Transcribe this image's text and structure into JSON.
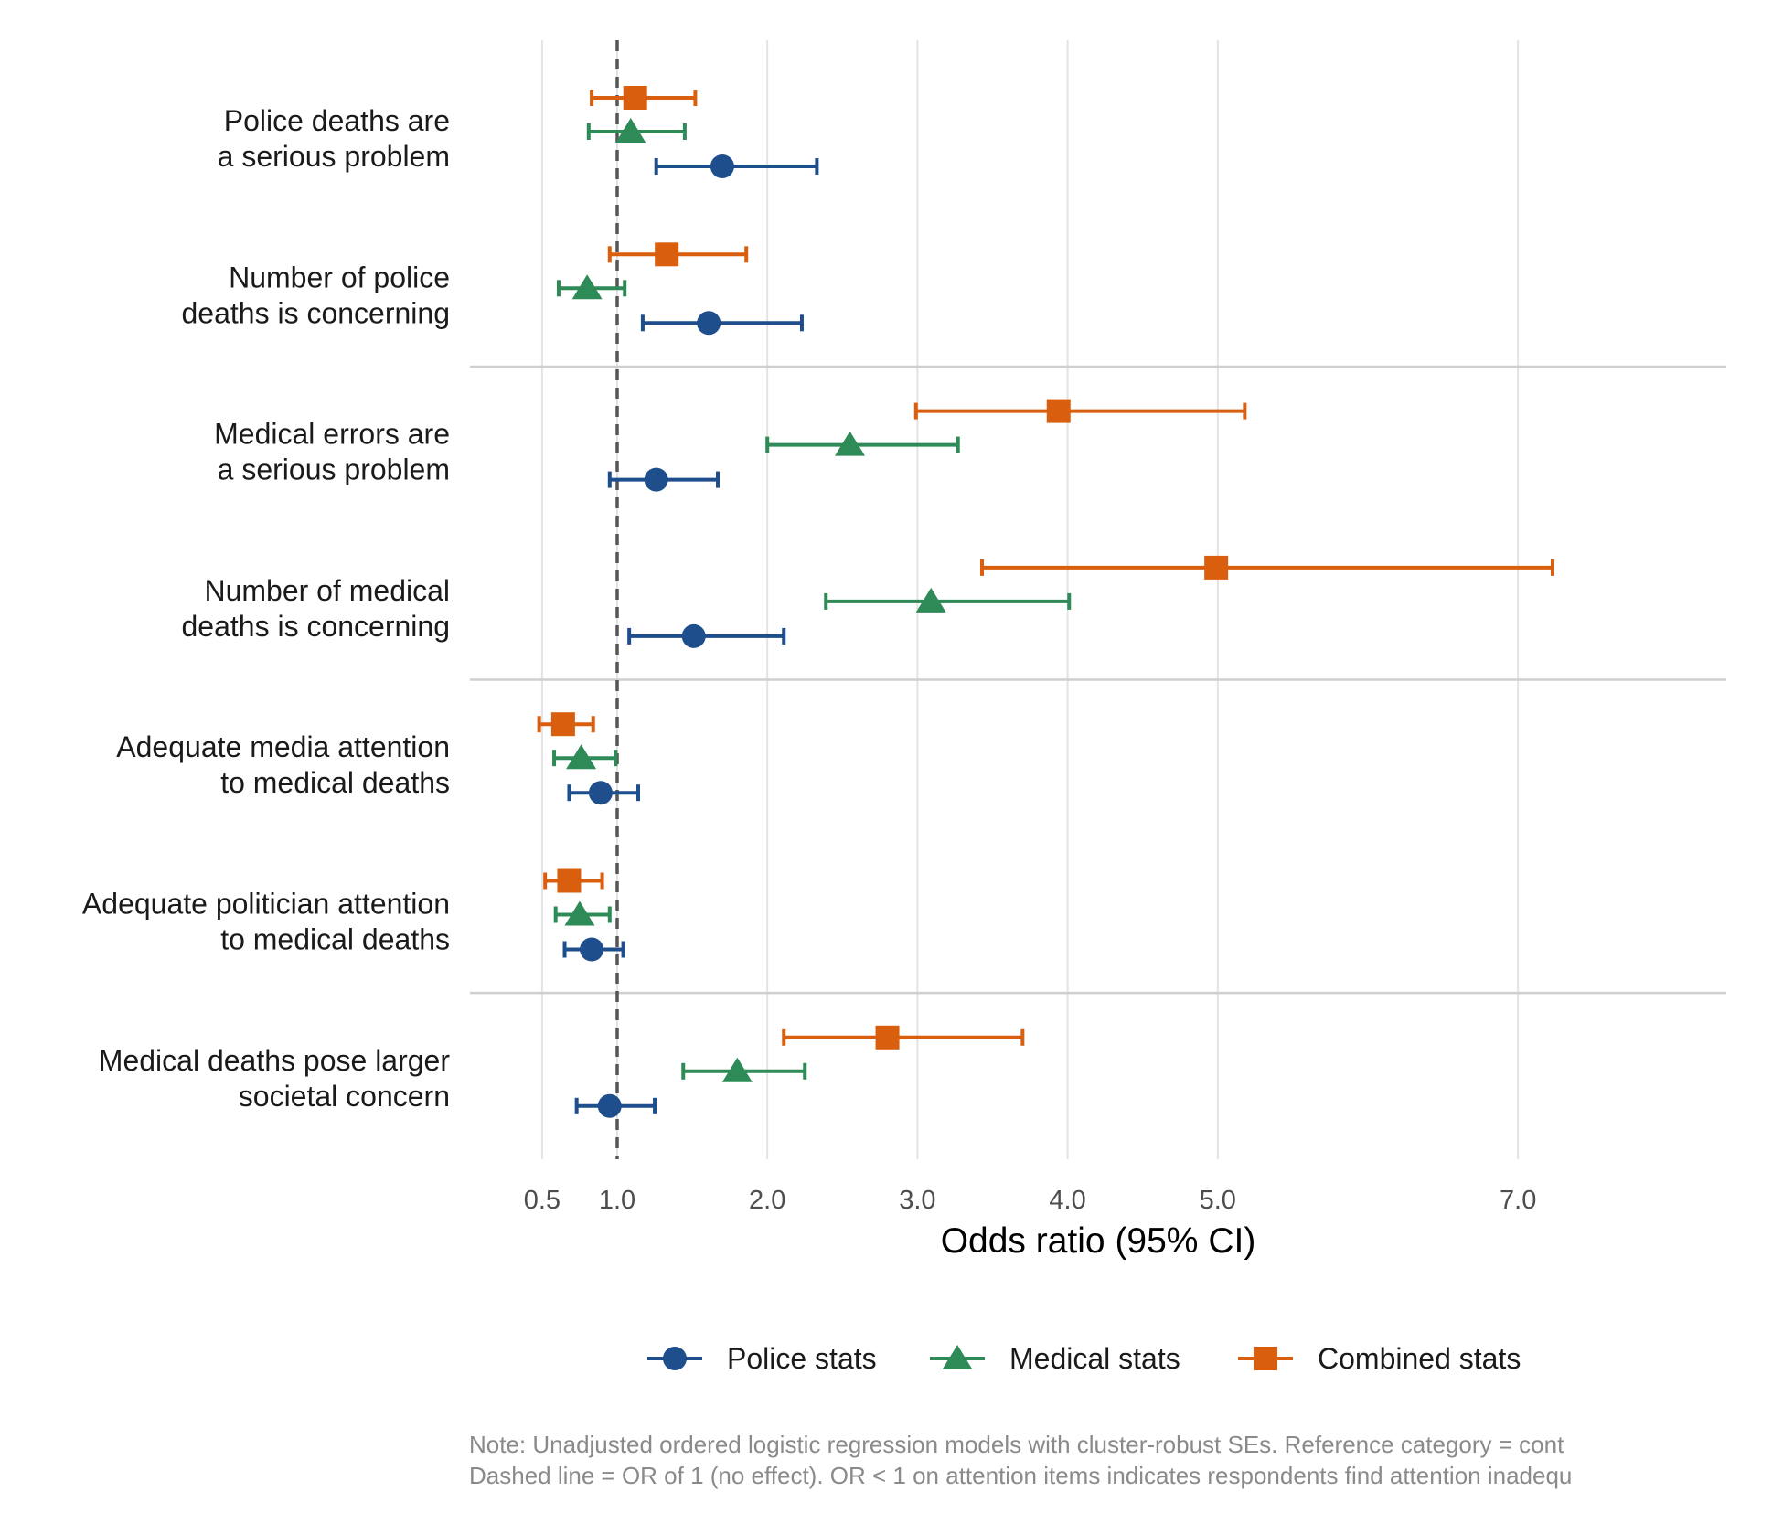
{
  "chart_data": {
    "type": "forest",
    "xlabel": "Odds ratio (95% CI)",
    "xlim": [
      0.4,
      8.4
    ],
    "x_ticks": [
      0.5,
      1.0,
      2.0,
      3.0,
      4.0,
      5.0,
      7.0
    ],
    "x_tick_labels": [
      "0.5",
      "1.0",
      "2.0",
      "3.0",
      "4.0",
      "5.0",
      "7.0"
    ],
    "reference_line": 1.0,
    "grid": true,
    "legend_position": "bottom",
    "categories": [
      [
        "Police deaths are",
        "a serious problem"
      ],
      [
        "Number of police",
        "deaths is concerning"
      ],
      [
        "Medical errors are",
        "a serious problem"
      ],
      [
        "Number of medical",
        "deaths is concerning"
      ],
      [
        "Adequate media attention",
        "to medical deaths"
      ],
      [
        "Adequate politician attention",
        "to medical deaths"
      ],
      [
        "Medical deaths pose larger",
        "societal concern"
      ]
    ],
    "group_dividers_after": [
      2,
      4,
      6
    ],
    "series": [
      {
        "name": "Police stats",
        "color": "#1f4e8c",
        "marker": "circle",
        "or": [
          1.7,
          1.61,
          1.26,
          1.51,
          0.89,
          0.83,
          0.95
        ],
        "lo": [
          1.26,
          1.17,
          0.95,
          1.08,
          0.68,
          0.65,
          0.73
        ],
        "hi": [
          2.33,
          2.23,
          1.67,
          2.11,
          1.14,
          1.04,
          1.25
        ]
      },
      {
        "name": "Medical stats",
        "color": "#2e8b57",
        "marker": "triangle",
        "or": [
          1.09,
          0.8,
          2.55,
          3.09,
          0.76,
          0.75,
          1.8
        ],
        "lo": [
          0.81,
          0.61,
          2.0,
          2.39,
          0.58,
          0.59,
          1.44
        ],
        "hi": [
          1.45,
          1.05,
          3.27,
          4.01,
          0.99,
          0.95,
          2.25
        ]
      },
      {
        "name": "Combined stats",
        "color": "#d95f0e",
        "marker": "square",
        "or": [
          1.12,
          1.33,
          3.94,
          4.99,
          0.64,
          0.68,
          2.8
        ],
        "lo": [
          0.83,
          0.95,
          2.99,
          3.43,
          0.48,
          0.52,
          2.11
        ],
        "hi": [
          1.52,
          1.86,
          5.18,
          7.23,
          0.84,
          0.9,
          3.7
        ]
      }
    ],
    "note": [
      "Note: Unadjusted ordered logistic regression models with cluster-robust SEs. Reference category = cont",
      "Dashed line = OR of 1 (no effect). OR < 1 on attention items indicates respondents find attention inadequ"
    ]
  }
}
